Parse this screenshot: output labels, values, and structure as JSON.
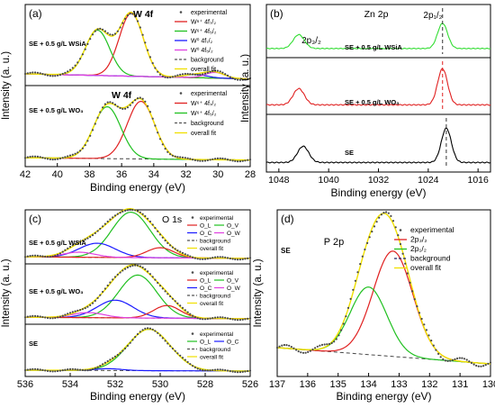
{
  "chart_data": [
    {
      "id": "a",
      "panel_label": "(a)",
      "type": "line",
      "title": "",
      "xlabel": "Binding energy (eV)",
      "ylabel": "Intensity (a. u.)",
      "xlim": [
        42,
        28
      ],
      "xticks": [
        42,
        40,
        38,
        36,
        34,
        32,
        30,
        28
      ],
      "subplots": [
        {
          "sample_label": "SE + 0.5 g/L WSiA",
          "peak_label": "W 4f",
          "legend": [
            {
              "label": "experimental",
              "kind": "dots",
              "color": "#4a4a4a"
            },
            {
              "label": "W⁶⁺ 4f₇/₂",
              "kind": "line",
              "color": "#e02020"
            },
            {
              "label": "W⁶⁺ 4f₅/₂",
              "kind": "line",
              "color": "#20c020"
            },
            {
              "label": "W⁰ 4f₇/₂",
              "kind": "line",
              "color": "#1a1aff"
            },
            {
              "label": "W⁰ 4f₅/₂",
              "kind": "line",
              "color": "#e040e0"
            },
            {
              "label": "background",
              "kind": "dash",
              "color": "#555555"
            },
            {
              "label": "overall fit",
              "kind": "line",
              "color": "#f0e000"
            }
          ],
          "peaks": [
            {
              "name": "W⁶⁺ 4f₇/₂",
              "color": "#e02020",
              "center": 35.4,
              "height": 1.0,
              "width": 0.75
            },
            {
              "name": "W⁶⁺ 4f₅/₂",
              "color": "#20c020",
              "center": 37.5,
              "height": 0.72,
              "width": 0.75
            },
            {
              "name": "W⁰ 4f₇/₂",
              "color": "#1a1aff",
              "center": 31.4,
              "height": 0.05,
              "width": 0.7
            },
            {
              "name": "W⁰ 4f₅/₂",
              "color": "#e040e0",
              "center": 30.2,
              "height": 0.09,
              "width": 0.6
            }
          ],
          "background": {
            "left": 0.1,
            "right": 0.02
          }
        },
        {
          "sample_label": "SE + 0.5 g/L WO₃",
          "peak_label": "W 4f",
          "legend": [
            {
              "label": "experimental",
              "kind": "dots",
              "color": "#4a4a4a"
            },
            {
              "label": "W⁶⁺ 4f₇/₂",
              "kind": "line",
              "color": "#e02020"
            },
            {
              "label": "W⁶⁺ 4f₅/₂",
              "kind": "line",
              "color": "#20c020"
            },
            {
              "label": "background",
              "kind": "dash",
              "color": "#555555"
            },
            {
              "label": "overall fit",
              "kind": "line",
              "color": "#f0e000"
            }
          ],
          "peaks": [
            {
              "name": "W⁶⁺ 4f₇/₂",
              "color": "#e02020",
              "center": 34.8,
              "height": 1.0,
              "width": 0.85
            },
            {
              "name": "W⁶⁺ 4f₅/₂",
              "color": "#20c020",
              "center": 36.9,
              "height": 0.9,
              "width": 0.85
            }
          ],
          "background": {
            "left": 0.06,
            "right": 0.02
          }
        }
      ]
    },
    {
      "id": "b",
      "panel_label": "(b)",
      "type": "line",
      "title": "Zn 2p",
      "xlabel": "Binding energy (eV)",
      "ylabel": "Intensity (a. u.)",
      "xlim": [
        1050,
        1014
      ],
      "xticks": [
        1048,
        1040,
        1032,
        1024,
        1016
      ],
      "peak_annotations": [
        "2p₃/₂",
        "2p₁/₂"
      ],
      "subplots": [
        {
          "sample_label": "SE + 0.5 g/L WSiA",
          "color": "#33dd33",
          "peaks": [
            {
              "center": 1044.8,
              "height": 0.55,
              "width": 0.9
            },
            {
              "center": 1021.7,
              "height": 1.0,
              "width": 0.8
            }
          ],
          "marker": 1021.7
        },
        {
          "sample_label": "SE + 0.5 g/L WO₃",
          "color": "#e02020",
          "peaks": [
            {
              "center": 1044.8,
              "height": 0.45,
              "width": 0.9
            },
            {
              "center": 1021.7,
              "height": 1.0,
              "width": 0.8
            }
          ],
          "marker": 1021.7
        },
        {
          "sample_label": "SE",
          "color": "#000000",
          "peaks": [
            {
              "center": 1044.1,
              "height": 0.45,
              "width": 0.9
            },
            {
              "center": 1021.1,
              "height": 0.95,
              "width": 0.8
            }
          ],
          "marker": 1021.1
        }
      ]
    },
    {
      "id": "c",
      "panel_label": "(c)",
      "type": "line",
      "title": "O 1s",
      "xlabel": "Binding energy (eV)",
      "ylabel": "Intensity (a. u.)",
      "xlim": [
        536,
        526
      ],
      "xticks": [
        536,
        534,
        532,
        530,
        528,
        526
      ],
      "subplots": [
        {
          "sample_label": "SE + 0.5 g/L WSiA",
          "legend": [
            {
              "label": "experimental",
              "kind": "dots",
              "color": "#4a4a4a"
            },
            {
              "label": "O_L",
              "kind": "line",
              "color": "#e02020"
            },
            {
              "label": "O_V",
              "kind": "line",
              "color": "#20c020"
            },
            {
              "label": "O_C",
              "kind": "line",
              "color": "#1a1aff"
            },
            {
              "label": "O_W",
              "kind": "line",
              "color": "#e040e0"
            },
            {
              "label": "background",
              "kind": "dash",
              "color": "#555555"
            },
            {
              "label": "overall fit",
              "kind": "line",
              "color": "#f0e000"
            }
          ],
          "peaks": [
            {
              "name": "O_V",
              "color": "#20c020",
              "center": 531.3,
              "height": 0.9,
              "width": 0.85
            },
            {
              "name": "O_C",
              "color": "#1a1aff",
              "center": 532.8,
              "height": 0.28,
              "width": 0.8
            },
            {
              "name": "O_L",
              "color": "#e02020",
              "center": 530.0,
              "height": 0.2,
              "width": 0.6
            },
            {
              "name": "O_W",
              "color": "#e040e0",
              "center": 533.6,
              "height": 0.1,
              "width": 0.7
            }
          ],
          "background": {
            "left": 0.05,
            "right": 0.02
          }
        },
        {
          "sample_label": "SE + 0.5 g/L WO₃",
          "legend": [
            {
              "label": "experimental",
              "kind": "dots",
              "color": "#4a4a4a"
            },
            {
              "label": "O_L",
              "kind": "line",
              "color": "#e02020"
            },
            {
              "label": "O_V",
              "kind": "line",
              "color": "#20c020"
            },
            {
              "label": "O_C",
              "kind": "line",
              "color": "#1a1aff"
            },
            {
              "label": "O_W",
              "kind": "line",
              "color": "#e040e0"
            },
            {
              "label": "background",
              "kind": "dash",
              "color": "#555555"
            },
            {
              "label": "overall fit",
              "kind": "line",
              "color": "#f0e000"
            }
          ],
          "peaks": [
            {
              "name": "O_V",
              "color": "#20c020",
              "center": 531.0,
              "height": 0.85,
              "width": 0.85
            },
            {
              "name": "O_C",
              "color": "#1a1aff",
              "center": 532.0,
              "height": 0.35,
              "width": 0.8
            },
            {
              "name": "O_L",
              "color": "#e02020",
              "center": 529.7,
              "height": 0.25,
              "width": 0.6
            },
            {
              "name": "O_W",
              "color": "#e040e0",
              "center": 533.2,
              "height": 0.1,
              "width": 0.7
            }
          ],
          "background": {
            "left": 0.05,
            "right": 0.02
          }
        },
        {
          "sample_label": "SE",
          "legend": [
            {
              "label": "experimental",
              "kind": "dots",
              "color": "#4a4a4a"
            },
            {
              "label": "O_L",
              "kind": "line",
              "color": "#20c020"
            },
            {
              "label": "O_C",
              "kind": "line",
              "color": "#1a1aff"
            },
            {
              "label": "background",
              "kind": "dash",
              "color": "#555555"
            },
            {
              "label": "overall fit",
              "kind": "line",
              "color": "#f0e000"
            }
          ],
          "peaks": [
            {
              "name": "O_L",
              "color": "#20c020",
              "center": 530.5,
              "height": 0.92,
              "width": 0.95
            },
            {
              "name": "O_C",
              "color": "#1a1aff",
              "center": 532.3,
              "height": 0.04,
              "width": 0.6
            }
          ],
          "background": {
            "left": 0.04,
            "right": 0.02
          }
        }
      ]
    },
    {
      "id": "d",
      "panel_label": "(d)",
      "type": "line",
      "title": "P 2p",
      "sample_label": "SE",
      "xlabel": "Binding energy (eV)",
      "ylabel": "Intensity (a. u.)",
      "xlim": [
        137,
        130
      ],
      "xticks": [
        137,
        136,
        135,
        134,
        133,
        132,
        131,
        130
      ],
      "legend": [
        {
          "label": "experimental",
          "kind": "dots",
          "color": "#4a4a4a"
        },
        {
          "label": "2p₃/₂",
          "kind": "line",
          "color": "#e02020"
        },
        {
          "label": "2p₁/₂",
          "kind": "line",
          "color": "#20c020"
        },
        {
          "label": "background",
          "kind": "dash",
          "color": "#222266"
        },
        {
          "label": "overall fit",
          "kind": "line",
          "color": "#f0e000"
        }
      ],
      "peaks": [
        {
          "name": "2p₃/₂",
          "color": "#e02020",
          "center": 133.2,
          "height": 0.78,
          "width": 0.65
        },
        {
          "name": "2p₁/₂",
          "color": "#20c020",
          "center": 134.0,
          "height": 0.5,
          "width": 0.6
        }
      ],
      "background": {
        "left": 0.16,
        "right": 0.04
      }
    }
  ]
}
